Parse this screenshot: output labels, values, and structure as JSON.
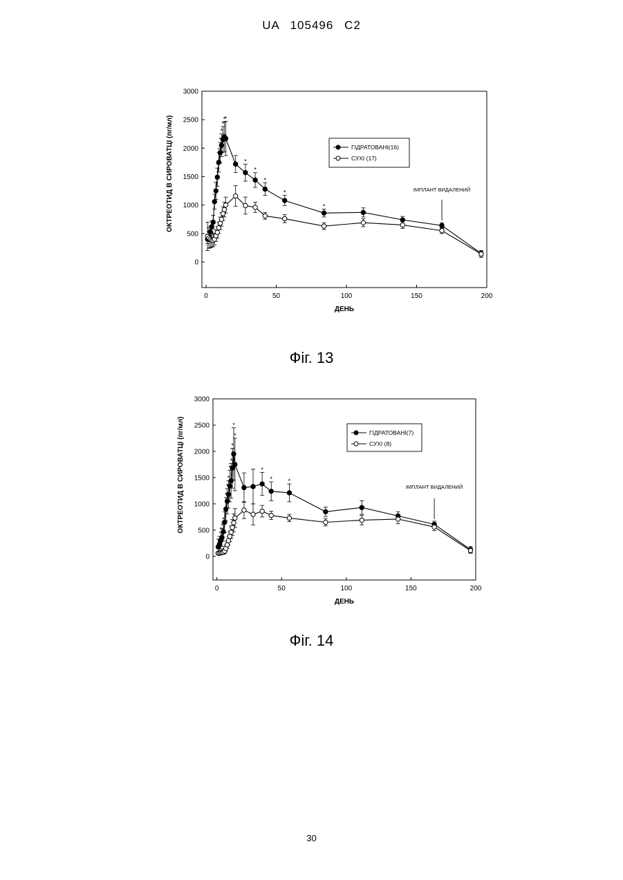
{
  "header": {
    "doc_id": "UA   105496   C2"
  },
  "page_number": "30",
  "figures": [
    {
      "caption": "Фіг. 13"
    },
    {
      "caption": "Фіг. 14"
    }
  ],
  "chart_data": [
    {
      "type": "line",
      "title": "",
      "xlabel": "ДЕНЬ",
      "ylabel": "ОКТРЕОТИД В СИРОВАТЦІ  (пг/мл)",
      "xlim": [
        -3,
        200
      ],
      "ylim": [
        -450,
        3000
      ],
      "xticks": [
        0,
        50,
        100,
        150,
        200
      ],
      "yticks": [
        0,
        500,
        1000,
        1500,
        2000,
        2500,
        3000
      ],
      "legend_position": "upper-right",
      "grid": false,
      "annotation": {
        "text": "ІМПЛАНТ ВИДАЛЕНИЙ",
        "x": 168
      },
      "series": [
        {
          "name": "ГІДРАТОВАНІ(16)",
          "marker": "filled-circle",
          "x": [
            1,
            2,
            3,
            4,
            5,
            6,
            7,
            8,
            9,
            10,
            11,
            12,
            13,
            14,
            21,
            28,
            35,
            42,
            56,
            84,
            112,
            140,
            168,
            196
          ],
          "y": [
            400,
            450,
            530,
            620,
            700,
            1060,
            1250,
            1490,
            1750,
            1920,
            2050,
            2150,
            2200,
            2170,
            1720,
            1570,
            1440,
            1280,
            1080,
            860,
            870,
            740,
            640,
            150
          ],
          "error": [
            80,
            90,
            100,
            100,
            120,
            130,
            150,
            160,
            170,
            180,
            200,
            230,
            260,
            300,
            150,
            150,
            130,
            110,
            90,
            70,
            80,
            60,
            50,
            50
          ],
          "significance_marks_x": [
            7,
            8,
            9,
            10,
            11,
            12,
            13,
            14,
            28,
            35,
            42,
            56,
            84
          ]
        },
        {
          "name": "СУХІ  (17)",
          "marker": "open-circle",
          "x": [
            1,
            2,
            3,
            4,
            5,
            6,
            7,
            8,
            9,
            10,
            11,
            12,
            13,
            14,
            21,
            28,
            35,
            42,
            56,
            84,
            112,
            140,
            168,
            196
          ],
          "y": [
            450,
            420,
            400,
            380,
            380,
            400,
            460,
            520,
            600,
            680,
            750,
            850,
            920,
            1000,
            1160,
            990,
            960,
            810,
            760,
            630,
            690,
            650,
            550,
            140
          ],
          "error": [
            250,
            180,
            150,
            120,
            110,
            100,
            100,
            100,
            100,
            110,
            120,
            120,
            130,
            140,
            180,
            150,
            90,
            60,
            70,
            60,
            70,
            60,
            50,
            60
          ]
        }
      ]
    },
    {
      "type": "line",
      "title": "",
      "xlabel": "ДЕНЬ",
      "ylabel": "ОКТРЕОТИД В СИРОВАТЦІ  (пг/мл)",
      "xlim": [
        -3,
        200
      ],
      "ylim": [
        -450,
        3000
      ],
      "xticks": [
        0,
        50,
        100,
        150,
        200
      ],
      "yticks": [
        0,
        500,
        1000,
        1500,
        2000,
        2500,
        3000
      ],
      "legend_position": "upper-right",
      "grid": false,
      "annotation": {
        "text": "ІМПЛАНТ ВИДАЛЕНИЙ",
        "x": 168
      },
      "series": [
        {
          "name": "ГІДРАТОВАНІ(7)",
          "marker": "filled-circle",
          "x": [
            1,
            2,
            3,
            4,
            5,
            6,
            7,
            8,
            9,
            10,
            11,
            12,
            13,
            14,
            21,
            28,
            35,
            42,
            56,
            84,
            112,
            140,
            168,
            196
          ],
          "y": [
            180,
            230,
            300,
            360,
            470,
            650,
            900,
            1050,
            1180,
            1340,
            1440,
            1680,
            1950,
            1750,
            1310,
            1330,
            1380,
            1240,
            1210,
            850,
            930,
            770,
            610,
            130
          ],
          "error": [
            150,
            150,
            160,
            170,
            180,
            200,
            220,
            240,
            260,
            300,
            330,
            380,
            500,
            500,
            280,
            330,
            220,
            180,
            170,
            90,
            130,
            80,
            60,
            60
          ],
          "significance_marks_x": [
            3,
            4,
            5,
            6,
            7,
            8,
            9,
            10,
            11,
            12,
            13,
            14,
            35,
            42,
            56
          ]
        },
        {
          "name": "СУХІ  (8)",
          "marker": "open-circle",
          "x": [
            1,
            2,
            3,
            4,
            5,
            6,
            7,
            8,
            9,
            10,
            11,
            12,
            13,
            14,
            21,
            28,
            35,
            42,
            56,
            84,
            112,
            140,
            168,
            196
          ],
          "y": [
            60,
            60,
            70,
            70,
            80,
            100,
            150,
            220,
            300,
            380,
            460,
            550,
            640,
            730,
            880,
            800,
            860,
            780,
            730,
            650,
            690,
            710,
            560,
            110
          ],
          "error": [
            30,
            30,
            30,
            30,
            40,
            50,
            60,
            70,
            80,
            100,
            120,
            150,
            170,
            180,
            160,
            200,
            110,
            80,
            70,
            70,
            90,
            90,
            70,
            50
          ]
        }
      ]
    }
  ]
}
